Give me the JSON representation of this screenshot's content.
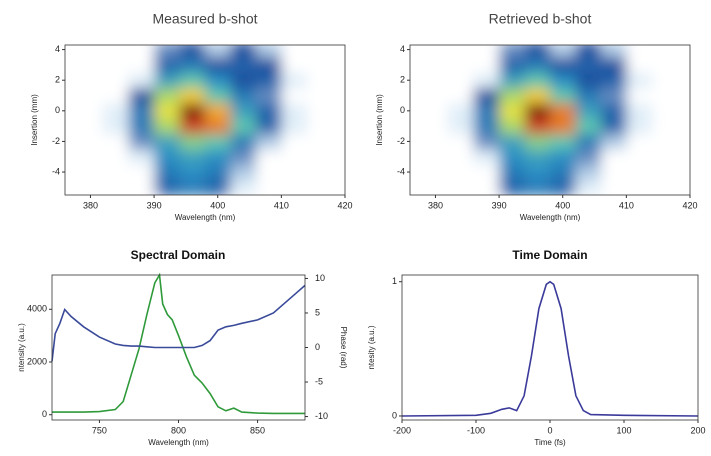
{
  "chart_data": [
    {
      "type": "heatmap",
      "title": "Measured b-shot",
      "xlabel": "Wavelength (nm)",
      "ylabel": "Insertion (mm)",
      "x": [
        380,
        384,
        388,
        392,
        396,
        400,
        404,
        408,
        412,
        416
      ],
      "y": [
        -5,
        -4,
        -3,
        -2,
        -1,
        0,
        1,
        2,
        3,
        4
      ],
      "z": [
        [
          0,
          0,
          0,
          0.25,
          0.3,
          0.25,
          0.05,
          0,
          0,
          0
        ],
        [
          0,
          0,
          0,
          0.3,
          0.35,
          0.3,
          0.1,
          0,
          0,
          0
        ],
        [
          0,
          0,
          0.05,
          0.35,
          0.4,
          0.35,
          0.15,
          0,
          0,
          0
        ],
        [
          0,
          0,
          0.15,
          0.4,
          0.55,
          0.5,
          0.3,
          0.1,
          0,
          0
        ],
        [
          0,
          0.05,
          0.3,
          0.6,
          0.9,
          0.85,
          0.5,
          0.25,
          0.05,
          0
        ],
        [
          0,
          0.05,
          0.3,
          0.7,
          1,
          0.8,
          0.4,
          0.25,
          0.05,
          0
        ],
        [
          0,
          0,
          0.2,
          0.6,
          0.75,
          0.5,
          0.3,
          0.15,
          0,
          0
        ],
        [
          0,
          0,
          0.05,
          0.4,
          0.5,
          0.35,
          0.2,
          0.25,
          0.05,
          0
        ],
        [
          0,
          0,
          0,
          0.25,
          0.3,
          0.2,
          0.25,
          0.2,
          0,
          0
        ],
        [
          0,
          0,
          0,
          0.15,
          0.2,
          0.1,
          0.2,
          0.1,
          0,
          0
        ]
      ],
      "xlim": [
        376,
        420
      ],
      "ylim": [
        -5.5,
        4.3
      ],
      "xticks": [
        380,
        390,
        400,
        410,
        420
      ],
      "yticks": [
        -4,
        -2,
        0,
        2,
        4
      ]
    },
    {
      "type": "heatmap",
      "title": "Retrieved b-shot",
      "xlabel": "Wavelength (nm)",
      "ylabel": "Insertion (mm)",
      "x": [
        380,
        384,
        388,
        392,
        396,
        400,
        404,
        408,
        412,
        416
      ],
      "y": [
        -5,
        -4,
        -3,
        -2,
        -1,
        0,
        1,
        2,
        3,
        4
      ],
      "z": [
        [
          0,
          0,
          0,
          0.25,
          0.3,
          0.25,
          0.05,
          0,
          0,
          0
        ],
        [
          0,
          0,
          0,
          0.3,
          0.35,
          0.3,
          0.1,
          0,
          0,
          0
        ],
        [
          0,
          0,
          0.05,
          0.35,
          0.4,
          0.35,
          0.15,
          0,
          0,
          0
        ],
        [
          0,
          0,
          0.15,
          0.4,
          0.55,
          0.5,
          0.3,
          0.1,
          0,
          0
        ],
        [
          0,
          0.05,
          0.3,
          0.6,
          0.9,
          0.85,
          0.5,
          0.25,
          0.05,
          0
        ],
        [
          0,
          0.05,
          0.3,
          0.7,
          1,
          0.85,
          0.4,
          0.25,
          0.05,
          0
        ],
        [
          0,
          0,
          0.2,
          0.6,
          0.75,
          0.5,
          0.3,
          0.15,
          0,
          0
        ],
        [
          0,
          0,
          0.05,
          0.4,
          0.5,
          0.35,
          0.2,
          0.25,
          0.05,
          0
        ],
        [
          0,
          0,
          0,
          0.25,
          0.3,
          0.2,
          0.25,
          0.2,
          0,
          0
        ],
        [
          0,
          0,
          0,
          0.15,
          0.2,
          0.1,
          0.2,
          0.1,
          0,
          0
        ]
      ],
      "xlim": [
        376,
        420
      ],
      "ylim": [
        -5.5,
        4.3
      ],
      "xticks": [
        380,
        390,
        400,
        410,
        420
      ],
      "yticks": [
        -4,
        -2,
        0,
        2,
        4
      ]
    },
    {
      "type": "line",
      "title": "Spectral Domain",
      "xlabel": "Wavelength (nm)",
      "ylabel": "ntensity (a.u.)",
      "y2label": "Phase (rad)",
      "x": [
        720,
        722,
        725,
        728,
        732,
        740,
        750,
        760,
        765,
        770,
        775,
        780,
        785,
        788,
        790,
        793,
        796,
        800,
        805,
        810,
        815,
        820,
        825,
        830,
        835,
        840,
        850,
        860,
        870,
        875,
        880
      ],
      "series": [
        {
          "color": "#2f9a3a",
          "values": [
            100,
            100,
            100,
            100,
            100,
            100,
            120,
            200,
            500,
            1500,
            2500,
            3800,
            5000,
            5300,
            4200,
            3800,
            3600,
            3000,
            2200,
            1500,
            1200,
            800,
            300,
            150,
            250,
            100,
            60,
            50,
            50,
            50,
            50
          ]
        },
        {
          "color": "#3a4a9a",
          "axis": "y2",
          "values": [
            -2,
            2,
            3.5,
            5.5,
            4.5,
            3,
            1.5,
            0.5,
            0.3,
            0.2,
            0.2,
            0.1,
            0,
            0,
            0,
            0,
            0,
            0,
            0,
            0,
            0.3,
            1,
            2.5,
            3,
            3.2,
            3.5,
            4,
            5,
            7,
            8,
            9
          ]
        }
      ],
      "xlim": [
        720,
        880
      ],
      "ylim": [
        -200,
        5300
      ],
      "xticks": [
        750,
        800,
        850
      ],
      "yticks": [
        0,
        2000,
        4000
      ],
      "y2lim": [
        -10.5,
        10.5
      ],
      "y2ticks": [
        -10,
        -5,
        0,
        5,
        10
      ]
    },
    {
      "type": "line",
      "title": "Time Domain",
      "xlabel": "Time (fs)",
      "ylabel": "ntesity (a.u.)",
      "x": [
        -200,
        -100,
        -80,
        -65,
        -55,
        -45,
        -35,
        -25,
        -15,
        -5,
        0,
        5,
        15,
        25,
        35,
        45,
        55,
        100,
        200
      ],
      "series": [
        {
          "color": "#3a3a9a",
          "values": [
            0,
            0.005,
            0.02,
            0.05,
            0.06,
            0.04,
            0.15,
            0.45,
            0.8,
            0.98,
            1,
            0.98,
            0.8,
            0.45,
            0.15,
            0.04,
            0.01,
            0.005,
            0
          ]
        }
      ],
      "xlim": [
        -200,
        200
      ],
      "ylim": [
        -0.03,
        1.05
      ],
      "xticks": [
        -200,
        -100,
        0,
        100,
        200
      ],
      "yticks": [
        0,
        1
      ]
    }
  ]
}
